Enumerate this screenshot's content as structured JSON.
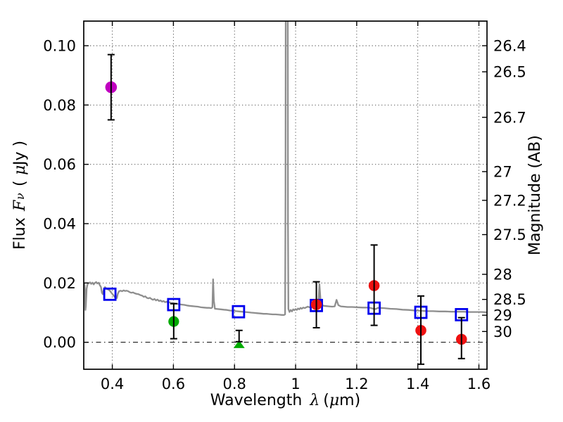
{
  "figure": {
    "background": "#ffffff"
  },
  "chart_data": {
    "type": "scatter",
    "title": "",
    "xlabel": "Wavelength λ (μm)",
    "ylabel_left": "Flux Fν ( μJy )",
    "ylabel_right": "Magnitude (AB)",
    "xlabel_parts": {
      "prefix": "Wavelength",
      "symbol": "λ",
      "unit_open": "(",
      "unit_mu": "μ",
      "unit_close": "m)"
    },
    "ylabel_left_parts": {
      "prefix": "Flux",
      "symbol_main": "F",
      "symbol_sub": "ν",
      "unit_open": "( ",
      "unit_mu": "μ",
      "unit_close": "Jy )"
    },
    "ylabel_right_parts": {
      "text": "Magnitude (AB)"
    },
    "xlim": [
      0.3065,
      1.6265
    ],
    "ylim": [
      -0.0091,
      0.1083
    ],
    "x_ticks": [
      0.4,
      0.6,
      0.8,
      1.0,
      1.2,
      1.4,
      1.6
    ],
    "x_tick_labels": [
      "0.4",
      "0.6",
      "0.8",
      "1",
      "1.2",
      "1.4",
      "1.6"
    ],
    "y_ticks_flux": [
      0.0,
      0.02,
      0.04,
      0.06,
      0.08,
      0.1
    ],
    "y_tick_labels_flux": [
      "0.00",
      "0.02",
      "0.04",
      "0.06",
      "0.08",
      "0.10"
    ],
    "y_tick_labels_mag": [
      "26.4",
      "26.5",
      "26.7",
      "27",
      "27.2",
      "27.5",
      "28",
      "28.5",
      "29",
      "30"
    ],
    "mag_zero_point_ab": 23.9,
    "grid": "dotted gridlines at all x and flux ticks; dash-dot horizontal line at flux = 0",
    "legend": "none",
    "colors": {
      "spectrum": "#8e8e8e",
      "magenta_point": "#bf00bf",
      "green_points": "#00aa00",
      "red_points": "#ee1111",
      "blue_squares": "#0000ee",
      "error_bars": "#000000",
      "frame": "#000000"
    },
    "photometry": [
      {
        "name": "blue-open-squares",
        "marker": "open-square",
        "color": "#0000ee",
        "size": 16,
        "points": [
          {
            "x": 0.392,
            "flux": 0.0162
          },
          {
            "x": 0.601,
            "flux": 0.0127
          },
          {
            "x": 0.813,
            "flux": 0.0103
          },
          {
            "x": 1.068,
            "flux": 0.0124
          },
          {
            "x": 1.257,
            "flux": 0.0115
          },
          {
            "x": 1.41,
            "flux": 0.0101
          },
          {
            "x": 1.543,
            "flux": 0.0093
          }
        ]
      },
      {
        "name": "magenta-circle",
        "marker": "circle",
        "color": "#bf00bf",
        "size": 16.6,
        "points": [
          {
            "x": 0.396,
            "flux": 0.086,
            "err_up": 0.011,
            "err_down": 0.011
          }
        ]
      },
      {
        "name": "green-circle",
        "marker": "circle",
        "color": "#00aa00",
        "size": 15.2,
        "points": [
          {
            "x": 0.601,
            "flux": 0.007,
            "err_up": 0.006,
            "err_down": 0.0058
          }
        ]
      },
      {
        "name": "green-triangle-upper-limit",
        "marker": "triangle-up",
        "color": "#00aa00",
        "size": 16,
        "points": [
          {
            "x": 0.815,
            "flux": -0.0009
          }
        ],
        "detached_error_bar": {
          "x": 0.815,
          "flux_low": 0.0002,
          "flux_high": 0.004
        }
      },
      {
        "name": "red-circles",
        "marker": "circle",
        "color": "#ee1111",
        "size": 15.6,
        "points": [
          {
            "x": 1.068,
            "flux": 0.0127,
            "err_up": 0.0077,
            "err_down": 0.0078
          },
          {
            "x": 1.257,
            "flux": 0.0191,
            "err_up": 0.0137,
            "err_down": 0.0134
          },
          {
            "x": 1.41,
            "flux": 0.004,
            "err_up": 0.0116,
            "err_down": 0.0114
          },
          {
            "x": 1.543,
            "flux": 0.001,
            "err_up": 0.0073,
            "err_down": 0.0065
          }
        ]
      }
    ],
    "series": [
      {
        "name": "model-spectrum",
        "style": "line",
        "color": "#8e8e8e",
        "points": [
          [
            0.307,
            0.0188
          ],
          [
            0.309,
            0.0196
          ],
          [
            0.3105,
            0.0177
          ],
          [
            0.312,
            0.0109
          ],
          [
            0.3135,
            0.0123
          ],
          [
            0.316,
            0.018
          ],
          [
            0.319,
            0.0196
          ],
          [
            0.323,
            0.0199
          ],
          [
            0.327,
            0.0202
          ],
          [
            0.331,
            0.0197
          ],
          [
            0.335,
            0.0201
          ],
          [
            0.339,
            0.0195
          ],
          [
            0.343,
            0.02
          ],
          [
            0.347,
            0.0203
          ],
          [
            0.351,
            0.0198
          ],
          [
            0.355,
            0.0201
          ],
          [
            0.359,
            0.0193
          ],
          [
            0.363,
            0.0186
          ],
          [
            0.366,
            0.0167
          ],
          [
            0.369,
            0.0162
          ],
          [
            0.372,
            0.0177
          ],
          [
            0.376,
            0.0186
          ],
          [
            0.38,
            0.0182
          ],
          [
            0.384,
            0.0179
          ],
          [
            0.388,
            0.0177
          ],
          [
            0.392,
            0.0174
          ],
          [
            0.396,
            0.0168
          ],
          [
            0.4,
            0.0163
          ],
          [
            0.404,
            0.0158
          ],
          [
            0.408,
            0.0152
          ],
          [
            0.412,
            0.015
          ],
          [
            0.415,
            0.0149
          ],
          [
            0.418,
            0.0163
          ],
          [
            0.422,
            0.0172
          ],
          [
            0.427,
            0.0174
          ],
          [
            0.432,
            0.0172
          ],
          [
            0.437,
            0.0175
          ],
          [
            0.442,
            0.0173
          ],
          [
            0.447,
            0.0174
          ],
          [
            0.452,
            0.0172
          ],
          [
            0.457,
            0.0169
          ],
          [
            0.462,
            0.0167
          ],
          [
            0.468,
            0.0168
          ],
          [
            0.474,
            0.0165
          ],
          [
            0.48,
            0.0163
          ],
          [
            0.486,
            0.0162
          ],
          [
            0.492,
            0.0159
          ],
          [
            0.498,
            0.0157
          ],
          [
            0.503,
            0.0153
          ],
          [
            0.508,
            0.0155
          ],
          [
            0.513,
            0.015
          ],
          [
            0.518,
            0.0148
          ],
          [
            0.523,
            0.015
          ],
          [
            0.528,
            0.0146
          ],
          [
            0.533,
            0.0143
          ],
          [
            0.538,
            0.0146
          ],
          [
            0.543,
            0.0141
          ],
          [
            0.548,
            0.0144
          ],
          [
            0.553,
            0.0139
          ],
          [
            0.558,
            0.0141
          ],
          [
            0.563,
            0.0137
          ],
          [
            0.568,
            0.0139
          ],
          [
            0.573,
            0.0135
          ],
          [
            0.578,
            0.0137
          ],
          [
            0.583,
            0.0133
          ],
          [
            0.588,
            0.0135
          ],
          [
            0.593,
            0.0132
          ],
          [
            0.598,
            0.0133
          ],
          [
            0.604,
            0.0131
          ],
          [
            0.612,
            0.013
          ],
          [
            0.62,
            0.0128
          ],
          [
            0.628,
            0.0127
          ],
          [
            0.636,
            0.0126
          ],
          [
            0.644,
            0.0124
          ],
          [
            0.652,
            0.0123
          ],
          [
            0.66,
            0.0122
          ],
          [
            0.67,
            0.0121
          ],
          [
            0.68,
            0.012
          ],
          [
            0.69,
            0.0118
          ],
          [
            0.7,
            0.0117
          ],
          [
            0.71,
            0.0116
          ],
          [
            0.718,
            0.0116
          ],
          [
            0.724,
            0.0115
          ],
          [
            0.7275,
            0.0118
          ],
          [
            0.73,
            0.0212
          ],
          [
            0.7325,
            0.014
          ],
          [
            0.736,
            0.0113
          ],
          [
            0.745,
            0.0112
          ],
          [
            0.755,
            0.0111
          ],
          [
            0.765,
            0.011
          ],
          [
            0.775,
            0.0109
          ],
          [
            0.785,
            0.0107
          ],
          [
            0.795,
            0.0106
          ],
          [
            0.805,
            0.0105
          ],
          [
            0.815,
            0.0104
          ],
          [
            0.825,
            0.0103
          ],
          [
            0.835,
            0.0102
          ],
          [
            0.845,
            0.0101
          ],
          [
            0.855,
            0.01
          ],
          [
            0.865,
            0.0099
          ],
          [
            0.875,
            0.0098
          ],
          [
            0.885,
            0.0097
          ],
          [
            0.895,
            0.0096
          ],
          [
            0.905,
            0.0096
          ],
          [
            0.915,
            0.0095
          ],
          [
            0.925,
            0.0094
          ],
          [
            0.935,
            0.0094
          ],
          [
            0.945,
            0.0093
          ],
          [
            0.955,
            0.0092
          ],
          [
            0.962,
            0.0092
          ],
          [
            0.9655,
            0.0094
          ],
          [
            0.967,
            0.05
          ],
          [
            0.9685,
            0.2
          ],
          [
            0.9735,
            0.2
          ],
          [
            0.975,
            0.04
          ],
          [
            0.9765,
            0.0112
          ],
          [
            0.98,
            0.0102
          ],
          [
            0.984,
            0.0109
          ],
          [
            0.988,
            0.0104
          ],
          [
            0.992,
            0.0111
          ],
          [
            0.996,
            0.0108
          ],
          [
            1.0,
            0.0112
          ],
          [
            1.004,
            0.0109
          ],
          [
            1.008,
            0.0114
          ],
          [
            1.012,
            0.0111
          ],
          [
            1.016,
            0.0116
          ],
          [
            1.02,
            0.0113
          ],
          [
            1.025,
            0.0117
          ],
          [
            1.03,
            0.0115
          ],
          [
            1.035,
            0.0118
          ],
          [
            1.04,
            0.012
          ],
          [
            1.046,
            0.0118
          ],
          [
            1.052,
            0.0121
          ],
          [
            1.058,
            0.0123
          ],
          [
            1.064,
            0.0124
          ],
          [
            1.07,
            0.0126
          ],
          [
            1.0745,
            0.013
          ],
          [
            1.078,
            0.0196
          ],
          [
            1.082,
            0.0138
          ],
          [
            1.086,
            0.0126
          ],
          [
            1.092,
            0.0123
          ],
          [
            1.1,
            0.0122
          ],
          [
            1.11,
            0.0121
          ],
          [
            1.12,
            0.012
          ],
          [
            1.128,
            0.0121
          ],
          [
            1.134,
            0.0143
          ],
          [
            1.14,
            0.0125
          ],
          [
            1.148,
            0.0121
          ],
          [
            1.158,
            0.012
          ],
          [
            1.17,
            0.0119
          ],
          [
            1.185,
            0.0119
          ],
          [
            1.2,
            0.0118
          ],
          [
            1.22,
            0.0117
          ],
          [
            1.24,
            0.0117
          ],
          [
            1.255,
            0.0113
          ],
          [
            1.262,
            0.0112
          ],
          [
            1.27,
            0.0116
          ],
          [
            1.29,
            0.0115
          ],
          [
            1.31,
            0.0113
          ],
          [
            1.33,
            0.0112
          ],
          [
            1.35,
            0.011
          ],
          [
            1.37,
            0.0109
          ],
          [
            1.39,
            0.0107
          ],
          [
            1.41,
            0.0106
          ],
          [
            1.43,
            0.0105
          ],
          [
            1.45,
            0.0105
          ],
          [
            1.47,
            0.0104
          ],
          [
            1.49,
            0.0104
          ],
          [
            1.51,
            0.0103
          ],
          [
            1.53,
            0.0103
          ],
          [
            1.55,
            0.0103
          ],
          [
            1.57,
            0.0102
          ],
          [
            1.59,
            0.0102
          ],
          [
            1.61,
            0.0102
          ],
          [
            1.6265,
            0.0101
          ]
        ]
      }
    ]
  }
}
